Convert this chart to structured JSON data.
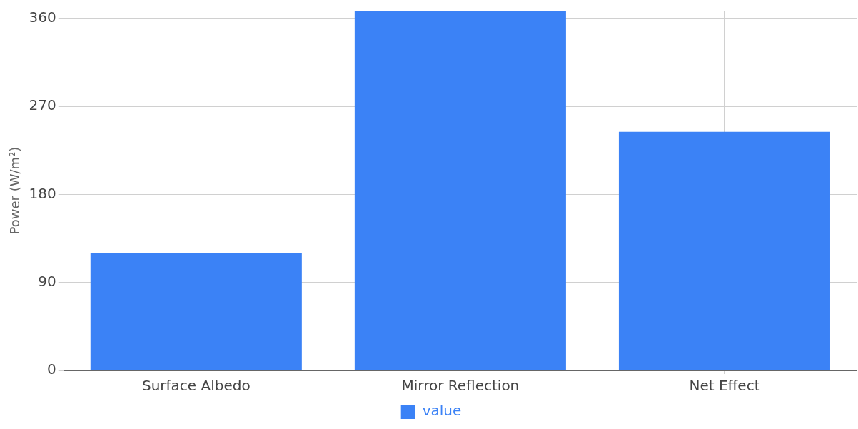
{
  "chart_data": {
    "type": "bar",
    "ylabel": "Power (W/m²)",
    "categories": [
      "Surface Albedo",
      "Mirror Reflection",
      "Net Effect"
    ],
    "series": [
      {
        "name": "value",
        "color": "#3b82f6",
        "values": [
          120,
          368,
          244
        ]
      }
    ],
    "ylim": [
      0,
      368
    ],
    "yticks": [
      0,
      90,
      180,
      270,
      360
    ],
    "grid": true,
    "legend": "bottom"
  }
}
